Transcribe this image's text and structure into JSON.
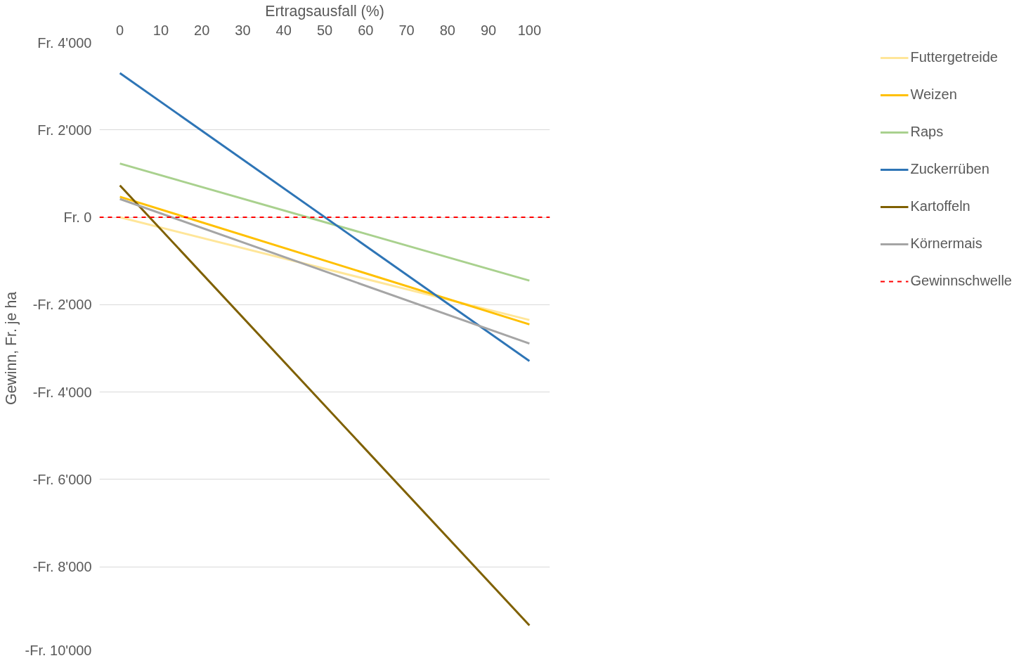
{
  "chart_data": {
    "type": "line",
    "xlabel": "Ertragsausfall (%)",
    "ylabel": "Gewinn, Fr. je ha",
    "x": [
      0,
      100
    ],
    "series": [
      {
        "name": "Futtergetreide",
        "color": "#ffe699",
        "values": [
          0,
          -2350
        ]
      },
      {
        "name": "Weizen",
        "color": "#ffc000",
        "values": [
          470,
          -2450
        ]
      },
      {
        "name": "Raps",
        "color": "#a9d18e",
        "values": [
          1230,
          -1450
        ]
      },
      {
        "name": "Zuckerrüben",
        "color": "#2e75b6",
        "values": [
          3300,
          -3290
        ]
      },
      {
        "name": "Kartoffeln",
        "color": "#7f6000",
        "values": [
          730,
          -9340
        ]
      },
      {
        "name": "Körnermais",
        "color": "#a5a5a5",
        "values": [
          420,
          -2890
        ]
      }
    ],
    "ref_lines": [
      {
        "axis": "y",
        "value": 0,
        "label": "Gewinnschwelle",
        "color": "#ff0000",
        "line_style": "dashed"
      }
    ],
    "xlim": [
      -5,
      105
    ],
    "xticks": [
      0,
      10,
      20,
      30,
      40,
      50,
      60,
      70,
      80,
      90,
      100
    ],
    "ylim": [
      -10000,
      4000
    ],
    "yticks": [
      {
        "value": 4000,
        "label": "Fr. 4'000"
      },
      {
        "value": 2000,
        "label": "Fr. 2'000"
      },
      {
        "value": 0,
        "label": "Fr. 0"
      },
      {
        "value": -2000,
        "label": "-Fr. 2'000"
      },
      {
        "value": -4000,
        "label": "-Fr. 4'000"
      },
      {
        "value": -6000,
        "label": "-Fr. 6'000"
      },
      {
        "value": -8000,
        "label": "-Fr. 8'000"
      },
      {
        "value": -10000,
        "label": "-Fr. 10'000"
      }
    ],
    "grid": "y",
    "legend": "right",
    "marker": "none",
    "line_style": "solid"
  }
}
